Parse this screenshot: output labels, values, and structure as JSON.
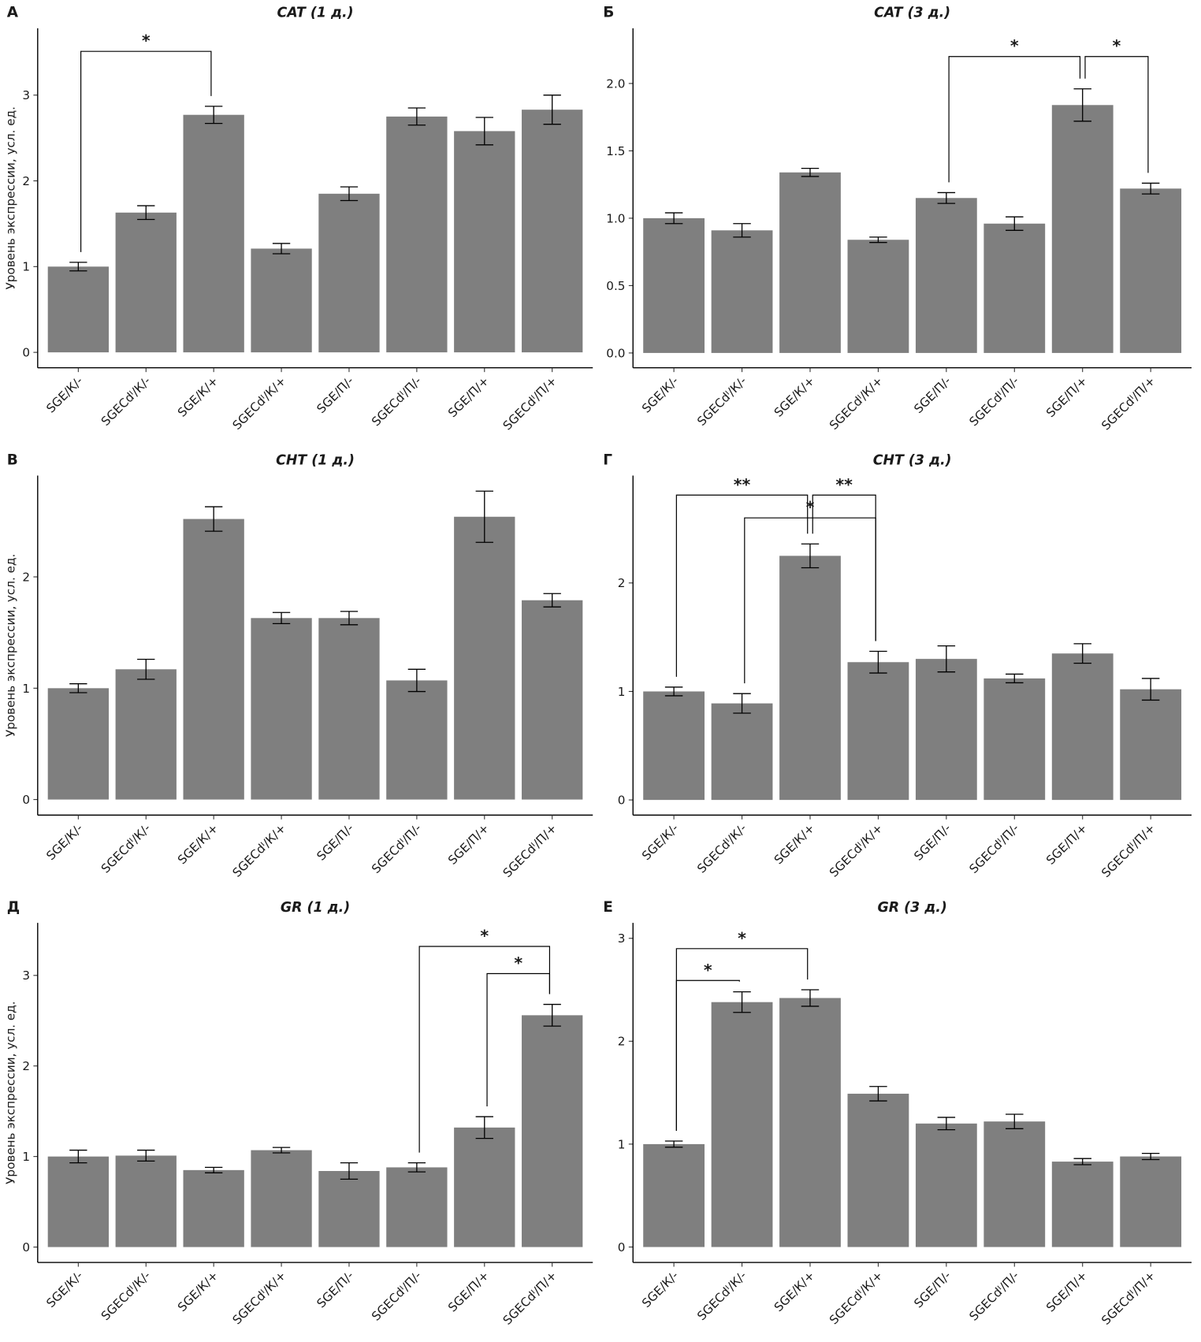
{
  "chart_data": [
    {
      "type": "bar",
      "letter": "А",
      "title": "CAT (1 д.)",
      "y_label": "Уровень экспрессии, усл. ед.",
      "categories": [
        "SGE/К/-",
        "SGECdᴵ/К/-",
        "SGE/К/+",
        "SGECdᴵ/К/+",
        "SGE/П/-",
        "SGECdᴵ/П/-",
        "SGE/П/+",
        "SGECdᴵ/П/+"
      ],
      "series": [
        {
          "color": "#7f7f7f",
          "values": [
            1.0,
            1.63,
            2.77,
            1.21,
            1.85,
            2.75,
            2.58,
            2.83
          ],
          "errors": [
            0.05,
            0.08,
            0.1,
            0.06,
            0.08,
            0.1,
            0.16,
            0.17
          ]
        }
      ],
      "ylim": [
        -0.18,
        3.78
      ],
      "yticks": [
        0,
        1,
        2,
        3
      ],
      "brackets": [
        {
          "from": 0,
          "to": 2,
          "y": 3.51,
          "label": "*"
        }
      ]
    },
    {
      "type": "bar",
      "letter": "Б",
      "title": "CAT (3 д.)",
      "categories": [
        "SGE/К/-",
        "SGECdᴵ/К/-",
        "SGE/К/+",
        "SGECdᴵ/К/+",
        "SGE/П/-",
        "SGECdᴵ/П/-",
        "SGE/П/+",
        "SGECdᴵ/П/+"
      ],
      "series": [
        {
          "color": "#7f7f7f",
          "values": [
            1.0,
            0.91,
            1.34,
            0.84,
            1.15,
            0.96,
            1.84,
            1.22
          ],
          "errors": [
            0.04,
            0.05,
            0.03,
            0.02,
            0.04,
            0.05,
            0.12,
            0.04
          ]
        }
      ],
      "ylim": [
        -0.11,
        2.41
      ],
      "yticks": [
        {
          "value": 0,
          "label": "0.0"
        },
        0.5,
        {
          "value": 1,
          "label": "1.0"
        },
        1.5,
        {
          "value": 2,
          "label": "2.0"
        }
      ],
      "brackets": [
        {
          "from": 4,
          "to": 6,
          "y": 2.2,
          "label": "*"
        },
        {
          "from": 6,
          "to": 7,
          "y": 2.2,
          "label": "*"
        }
      ]
    },
    {
      "type": "bar",
      "letter": "В",
      "title": "CHT (1 д.)",
      "y_label": "Уровень экспрессии, усл. ед.",
      "categories": [
        "SGE/К/-",
        "SGECdᴵ/К/-",
        "SGE/К/+",
        "SGECdᴵ/К/+",
        "SGE/П/-",
        "SGECdᴵ/П/-",
        "SGE/П/+",
        "SGECdᴵ/П/+"
      ],
      "series": [
        {
          "color": "#7f7f7f",
          "values": [
            1.0,
            1.17,
            2.52,
            1.63,
            1.63,
            1.07,
            2.54,
            1.79
          ],
          "errors": [
            0.04,
            0.09,
            0.11,
            0.05,
            0.06,
            0.1,
            0.23,
            0.06
          ]
        }
      ],
      "ylim": [
        -0.14,
        2.91
      ],
      "yticks": [
        0,
        1,
        2
      ],
      "brackets": []
    },
    {
      "type": "bar",
      "letter": "Г",
      "title": "CHT (3 д.)",
      "categories": [
        "SGE/К/-",
        "SGECdᴵ/К/-",
        "SGE/К/+",
        "SGECdᴵ/К/+",
        "SGE/П/-",
        "SGECdᴵ/П/-",
        "SGE/П/+",
        "SGECdᴵ/П/+"
      ],
      "series": [
        {
          "color": "#7f7f7f",
          "values": [
            1.0,
            0.89,
            2.25,
            1.27,
            1.3,
            1.12,
            1.35,
            1.02
          ],
          "errors": [
            0.04,
            0.09,
            0.11,
            0.1,
            0.12,
            0.04,
            0.09,
            0.1
          ]
        }
      ],
      "ylim": [
        -0.14,
        2.99
      ],
      "yticks": [
        0,
        1,
        2
      ],
      "brackets": [
        {
          "from": 0,
          "to": 2,
          "y": 2.81,
          "label": "**"
        },
        {
          "from": 2,
          "to": 3,
          "y": 2.81,
          "label": "**"
        },
        {
          "from": 1,
          "to": 3,
          "y": 2.6,
          "label": "*"
        }
      ]
    },
    {
      "type": "bar",
      "letter": "Д",
      "title": "GR (1 д.)",
      "y_label": "Уровень экспрессии, усл. ед.",
      "categories": [
        "SGE/К/-",
        "SGECdᴵ/К/-",
        "SGE/К/+",
        "SGECdᴵ/К/+",
        "SGE/П/-",
        "SGECdᴵ/П/-",
        "SGE/П/+",
        "SGECdᴵ/П/+"
      ],
      "series": [
        {
          "color": "#7f7f7f",
          "values": [
            1.0,
            1.01,
            0.85,
            1.07,
            0.84,
            0.88,
            1.32,
            2.56
          ],
          "errors": [
            0.07,
            0.06,
            0.03,
            0.03,
            0.09,
            0.05,
            0.12,
            0.12
          ]
        }
      ],
      "ylim": [
        -0.17,
        3.58
      ],
      "yticks": [
        0,
        1,
        2,
        3
      ],
      "brackets": [
        {
          "from": 5,
          "to": 7,
          "y": 3.32,
          "label": "*"
        },
        {
          "from": 6,
          "to": 7,
          "y": 3.02,
          "label": "*"
        }
      ]
    },
    {
      "type": "bar",
      "letter": "Е",
      "title": "GR (3 д.)",
      "categories": [
        "SGE/К/-",
        "SGECdᴵ/К/-",
        "SGE/К/+",
        "SGECdᴵ/К/+",
        "SGE/П/-",
        "SGECdᴵ/П/-",
        "SGE/П/+",
        "SGECdᴵ/П/+"
      ],
      "series": [
        {
          "color": "#7f7f7f",
          "values": [
            1.0,
            2.38,
            2.42,
            1.49,
            1.2,
            1.22,
            0.83,
            0.88
          ],
          "errors": [
            0.03,
            0.1,
            0.08,
            0.07,
            0.06,
            0.07,
            0.03,
            0.03
          ]
        }
      ],
      "ylim": [
        -0.15,
        3.15
      ],
      "yticks": [
        0,
        1,
        2,
        3
      ],
      "brackets": [
        {
          "from": 0,
          "to": 2,
          "y": 2.9,
          "label": "*"
        },
        {
          "from": 0,
          "to": 1,
          "y": 2.59,
          "label": "*"
        }
      ]
    }
  ]
}
